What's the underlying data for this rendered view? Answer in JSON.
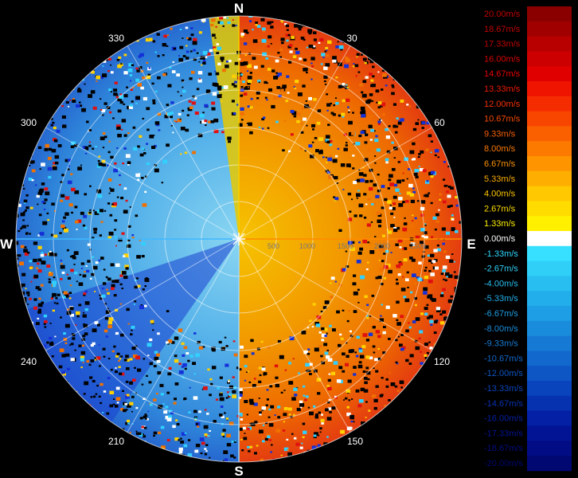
{
  "radar": {
    "cardinals": {
      "n": "N",
      "e": "E",
      "s": "S",
      "w": "W"
    },
    "bearings": [
      "30",
      "60",
      "120",
      "150",
      "210",
      "240",
      "300",
      "330"
    ],
    "range_labels": [
      "500",
      "1000",
      "1500",
      "2000",
      "2500"
    ],
    "colors": {
      "north_wedge": "#e8c800",
      "east_warm_inner": "#f0a800",
      "east_warm_outer": "#e84010",
      "west_cool_inner": "#7ad0ee",
      "west_cool_outer": "#2f7fd8",
      "deep_blue": "#1430d8",
      "axis_warm": "#ff8a00",
      "axis_cool": "#40b8ff"
    }
  },
  "legend": {
    "items": [
      {
        "label": "20.00m/s",
        "color": "#8a0000",
        "text_color": "#c00000"
      },
      {
        "label": "18.67m/s",
        "color": "#a00000",
        "text_color": "#c00000"
      },
      {
        "label": "17.33m/s",
        "color": "#b80000",
        "text_color": "#c00000"
      },
      {
        "label": "16.00m/s",
        "color": "#cc0000",
        "text_color": "#d80000"
      },
      {
        "label": "14.67m/s",
        "color": "#e00000",
        "text_color": "#e80000"
      },
      {
        "label": "13.33m/s",
        "color": "#ee1400",
        "text_color": "#ee1a00"
      },
      {
        "label": "12.00m/s",
        "color": "#f52c00",
        "text_color": "#f53000"
      },
      {
        "label": "10.67m/s",
        "color": "#f84600",
        "text_color": "#f84a00"
      },
      {
        "label": "9.33m/s",
        "color": "#fa6000",
        "text_color": "#fa6000"
      },
      {
        "label": "8.00m/s",
        "color": "#fc7a00",
        "text_color": "#fc7a00"
      },
      {
        "label": "6.67m/s",
        "color": "#fd9400",
        "text_color": "#fd9400"
      },
      {
        "label": "5.33m/s",
        "color": "#feae00",
        "text_color": "#feae00"
      },
      {
        "label": "4.00m/s",
        "color": "#ffc800",
        "text_color": "#ffc800"
      },
      {
        "label": "2.67m/s",
        "color": "#ffdc00",
        "text_color": "#ffdc00"
      },
      {
        "label": "1.33m/s",
        "color": "#fff000",
        "text_color": "#fff000"
      },
      {
        "label": "0.00m/s",
        "color": "#ffffff",
        "text_color": "#ffffff"
      },
      {
        "label": "-1.33m/s",
        "color": "#38e0ff",
        "text_color": "#30d8ff"
      },
      {
        "label": "-2.67m/s",
        "color": "#30cff8",
        "text_color": "#30cff8"
      },
      {
        "label": "-4.00m/s",
        "color": "#28bef0",
        "text_color": "#28bef0"
      },
      {
        "label": "-5.33m/s",
        "color": "#22aeea",
        "text_color": "#22aeea"
      },
      {
        "label": "-6.67m/s",
        "color": "#1e9ee4",
        "text_color": "#1e9ee4"
      },
      {
        "label": "-8.00m/s",
        "color": "#1a8cdc",
        "text_color": "#1a8cdc"
      },
      {
        "label": "-9.33m/s",
        "color": "#167ad4",
        "text_color": "#167ad4"
      },
      {
        "label": "-10.67m/s",
        "color": "#1268cc",
        "text_color": "#1268cc"
      },
      {
        "label": "-12.00m/s",
        "color": "#0e56c4",
        "text_color": "#0e56c4"
      },
      {
        "label": "-13.33m/s",
        "color": "#0a44bc",
        "text_color": "#0a44bc"
      },
      {
        "label": "-14.67m/s",
        "color": "#0632b0",
        "text_color": "#0632b0"
      },
      {
        "label": "-16.00m/s",
        "color": "#0420a4",
        "text_color": "#0420a4"
      },
      {
        "label": "-17.33m/s",
        "color": "#021494",
        "text_color": "#021494"
      },
      {
        "label": "-18.67m/s",
        "color": "#020c84",
        "text_color": "#020c84"
      },
      {
        "label": "-20.00m/s",
        "color": "#010872",
        "text_color": "#010872"
      }
    ]
  }
}
